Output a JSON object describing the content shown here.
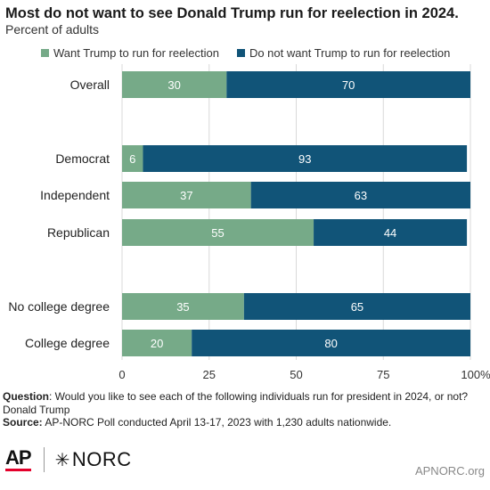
{
  "colors": {
    "want": "#76aa88",
    "not_want": "#115478",
    "grid": "#d9d9d9",
    "axis_text": "#333333"
  },
  "chart_data": {
    "type": "bar",
    "orientation": "horizontal",
    "stacked": true,
    "title": "Most do not want to see Donald Trump run for reelection in 2024.",
    "subtitle": "Percent of adults",
    "legend_position": "top",
    "categories": [
      "Overall",
      "Democrat",
      "Independent",
      "Republican",
      "No college degree",
      "College degree"
    ],
    "series": [
      {
        "name": "Want Trump to run for reelection",
        "values": [
          30,
          6,
          37,
          55,
          35,
          20
        ]
      },
      {
        "name": "Do not want Trump to run for reelection",
        "values": [
          70,
          93,
          63,
          44,
          65,
          80
        ]
      }
    ],
    "xlim": [
      0,
      100
    ],
    "xticks": [
      "0",
      "25",
      "50",
      "75",
      "100%"
    ],
    "grid": true
  },
  "footer": {
    "question_label": "Question",
    "question_text": ": Would you like to see each of the following individuals run for president in 2024, or not? Donald Trump",
    "source_label": "Source:",
    "source_text": " AP-NORC Poll conducted April 13-17, 2023 with 1,230 adults nationwide."
  },
  "logos": {
    "ap": "AP",
    "norc": "NORC",
    "norc_mark": "✳"
  },
  "site": "APNORC.org"
}
